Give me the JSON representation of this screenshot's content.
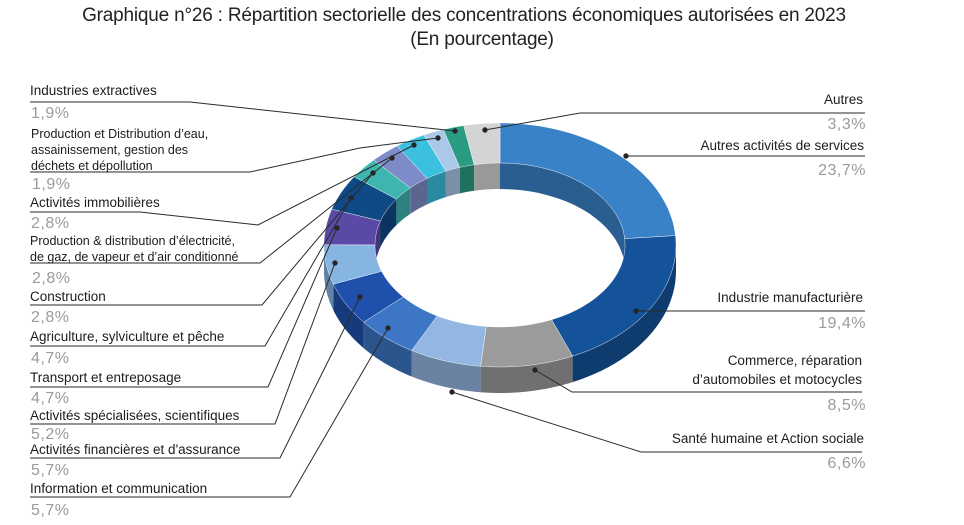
{
  "title": {
    "line1": "Graphique n°26 : Répartition sectorielle des concentrations économiques autorisées en 2023",
    "line2": "(En pourcentage)"
  },
  "chart_data": {
    "type": "pie",
    "variant": "3d-donut",
    "title": "Graphique n°26 : Répartition sectorielle des concentrations économiques autorisées en 2023",
    "subtitle": "(En pourcentage)",
    "unit": "%",
    "legend_position": "callout-labels",
    "slices": [
      {
        "label": "Autres activités de services",
        "value": 23.7,
        "display": "23,7%",
        "color": "#3a82c8"
      },
      {
        "label": "Industrie manufacturière",
        "value": 19.4,
        "display": "19,4%",
        "color": "#14539a"
      },
      {
        "label": "Commerce, réparation d’automobiles et motocycles",
        "value": 8.5,
        "display": "8,5%",
        "color": "#9b9b9b"
      },
      {
        "label": "Santé humaine et Action sociale",
        "value": 6.6,
        "display": "6,6%",
        "color": "#93b6e2"
      },
      {
        "label": "Information et communication",
        "value": 5.7,
        "display": "5,7%",
        "color": "#3c76c4"
      },
      {
        "label": "Activités financières et d'assurance",
        "value": 5.7,
        "display": "5,7%",
        "color": "#1f50ac"
      },
      {
        "label": "Activités spécialisées, scientifiques",
        "value": 5.2,
        "display": "5,2%",
        "color": "#86b5e2"
      },
      {
        "label": "Transport et entreposage",
        "value": 4.7,
        "display": "4,7%",
        "color": "#5a4aa6"
      },
      {
        "label": "Agriculture, sylviculture et pêche",
        "value": 4.7,
        "display": "4,7%",
        "color": "#0f4a86"
      },
      {
        "label": "Construction",
        "value": 2.8,
        "display": "2,8%",
        "color": "#3fb5b0"
      },
      {
        "label": "Production & distribution d’électricité, de gaz, de vapeur et d’air conditionné",
        "value": 2.8,
        "display": "2,8%",
        "color": "#7d8cc8"
      },
      {
        "label": "Activités immobilières",
        "value": 2.8,
        "display": "2,8%",
        "color": "#3cc0e0"
      },
      {
        "label": "Production et Distribution d’eau, assainissement, gestion des déchets et dépollution",
        "value": 1.9,
        "display": "1,9%",
        "color": "#aac8e8"
      },
      {
        "label": "Industries extractives",
        "value": 1.9,
        "display": "1,9%",
        "color": "#2a9c84"
      },
      {
        "label": "Autres",
        "value": 3.3,
        "display": "3,3%",
        "color": "#d4d4d4"
      }
    ]
  },
  "labels": {
    "autres": {
      "name": "Autres",
      "value": "3,3%"
    },
    "services": {
      "name": "Autres activités de services",
      "value": "23,7%"
    },
    "manuf": {
      "name": "Industrie manufacturière",
      "value": "19,4%"
    },
    "commerce": {
      "line1": "Commerce, réparation",
      "line2": "d’automobiles et motocycles",
      "value": "8,5%"
    },
    "sante": {
      "name": "Santé humaine et Action sociale",
      "value": "6,6%"
    },
    "extractives": {
      "name": "Industries extractives",
      "value": "1,9%"
    },
    "eau": {
      "line1": "Production et Distribution d’eau,",
      "line2": "assainissement, gestion des",
      "line3": "déchets  et dépollution",
      "value": "1,9%"
    },
    "immo": {
      "name": "Activités immobilières",
      "value": "2,8%"
    },
    "elec": {
      "line1": "Production & distribution d’électricité,",
      "line2": "de gaz, de vapeur et d’air conditionné",
      "value": "2,8%"
    },
    "construction": {
      "name": "Construction",
      "value": "2,8%"
    },
    "agri": {
      "name": "Agriculture, sylviculture et pêche",
      "value": "4,7%"
    },
    "transport": {
      "name": "Transport et entreposage",
      "value": "4,7%"
    },
    "specialisees": {
      "name": "Activités spécialisées, scientifiques",
      "value": "5,2%"
    },
    "financieres": {
      "name": "Activités financières et d'assurance",
      "value": "5,7%"
    },
    "info": {
      "name": "Information et communication",
      "value": "5,7%"
    }
  }
}
